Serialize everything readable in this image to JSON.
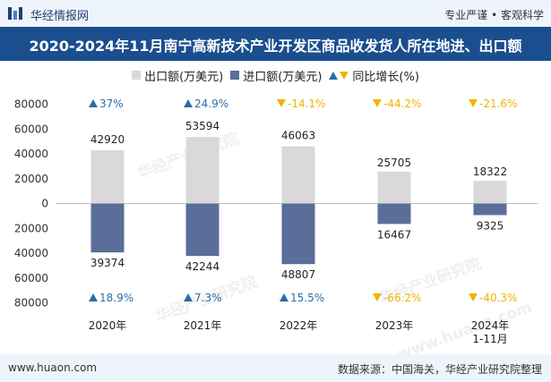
{
  "header": {
    "brand": "华经情报网",
    "tagline": "专业严谨 • 客观科学"
  },
  "watermark": {
    "text": "华经产业研究院",
    "url": "www.huaon.com"
  },
  "footer": {
    "site": "www.huaon.com",
    "source": "数据来源：中国海关，华经产业研究院整理"
  },
  "colors": {
    "export": "#d9d9d9",
    "import": "#5b6e99",
    "up": "#2a6da8",
    "down": "#f0b400",
    "title_bg": "#1a4e8e"
  },
  "chart_data": {
    "type": "bar",
    "title": "2020-2024年11月南宁高新技术产业开发区商品收发货人所在地进、出口额",
    "categories": [
      "2020年",
      "2021年",
      "2022年",
      "2023年",
      "2024年\n1-11月"
    ],
    "series": [
      {
        "name": "出口额(万美元)",
        "values": [
          42920,
          53594,
          46063,
          25705,
          18322
        ]
      },
      {
        "name": "进口额(万美元)",
        "values": [
          39374,
          42244,
          48807,
          16467,
          9325
        ]
      }
    ],
    "growth_legend": "同比增长(%)",
    "export_growth": [
      "37%",
      "24.9%",
      "-14.1%",
      "-44.2%",
      "-21.6%"
    ],
    "import_growth": [
      "18.9%",
      "7.3%",
      "15.5%",
      "-66.2%",
      "-40.3%"
    ],
    "export_growth_dir": [
      "up",
      "up",
      "down",
      "down",
      "down"
    ],
    "import_growth_dir": [
      "up",
      "up",
      "up",
      "down",
      "down"
    ],
    "y_ticks": [
      "80000",
      "60000",
      "40000",
      "20000",
      "0",
      "20000",
      "40000",
      "60000",
      "80000"
    ],
    "ylim": [
      -80000,
      80000
    ]
  }
}
